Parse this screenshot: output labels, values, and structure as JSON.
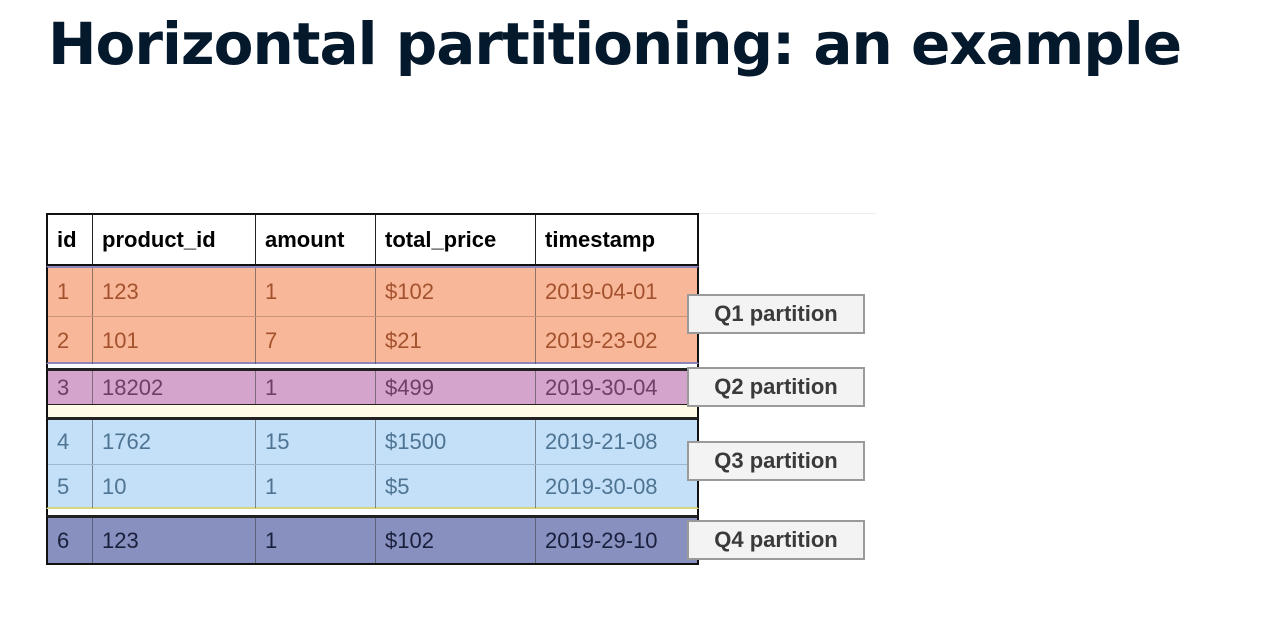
{
  "slide": {
    "title": "Horizontal partitioning: an example"
  },
  "table": {
    "headers": [
      "id",
      "product_id",
      "amount",
      "total_price",
      "timestamp"
    ],
    "groups": [
      {
        "label": "Q1 partition",
        "color": "#f8b798",
        "rows": [
          [
            "1",
            "123",
            "1",
            "$102",
            "2019-04-01"
          ],
          [
            "2",
            "101",
            "7",
            "$21",
            "2019-23-02"
          ]
        ]
      },
      {
        "label": "Q2 partition",
        "color": "#d5a4cc",
        "rows": [
          [
            "3",
            "18202",
            "1",
            "$499",
            "2019-30-04"
          ]
        ]
      },
      {
        "label": "Q3 partition",
        "color": "#c3e0f8",
        "rows": [
          [
            "4",
            "1762",
            "15",
            "$1500",
            "2019-21-08"
          ],
          [
            "5",
            "10",
            "1",
            "$5",
            "2019-30-08"
          ]
        ]
      },
      {
        "label": "Q4 partition",
        "color": "#8890c0",
        "rows": [
          [
            "6",
            "123",
            "1",
            "$102",
            "2019-29-10"
          ]
        ]
      }
    ]
  }
}
